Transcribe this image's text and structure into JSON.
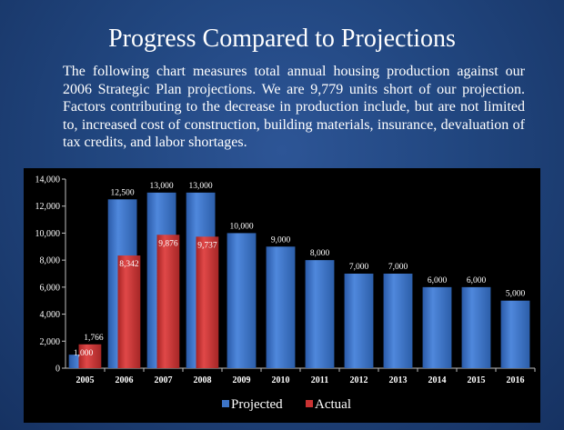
{
  "slide": {
    "title": "Progress Compared to Projections",
    "body": "The following chart measures total annual housing production against our 2006 Strategic Plan projections.  We are 9,779 units short of our projection. Factors contributing to the decrease in production include, but are not limited to, increased cost of construction, building materials, insurance, devaluation of tax credits, and labor shortages."
  },
  "colors": {
    "projected": "#3c74c8",
    "actual": "#c93232",
    "background": "#1f3f73"
  },
  "chart_data": {
    "type": "bar",
    "title": "",
    "xlabel": "",
    "ylabel": "",
    "ylim": [
      0,
      14000
    ],
    "yticks": [
      0,
      2000,
      4000,
      6000,
      8000,
      10000,
      12000,
      14000
    ],
    "ytick_labels": [
      "0",
      "2,000",
      "4,000",
      "6,000",
      "8,000",
      "10,000",
      "12,000",
      "14,000"
    ],
    "categories": [
      "2005",
      "2006",
      "2007",
      "2008",
      "2009",
      "2010",
      "2011",
      "2012",
      "2013",
      "2014",
      "2015",
      "2016"
    ],
    "series": [
      {
        "name": "Projected",
        "color": "#3c74c8",
        "values": [
          1000,
          12500,
          13000,
          13000,
          10000,
          9000,
          8000,
          7000,
          7000,
          6000,
          6000,
          5000
        ],
        "labels": [
          "1,000",
          "12,500",
          "13,000",
          "13,000",
          "10,000",
          "9,000",
          "8,000",
          "7,000",
          "7,000",
          "6,000",
          "6,000",
          "5,000"
        ]
      },
      {
        "name": "Actual",
        "color": "#c93232",
        "values": [
          1766,
          8342,
          9876,
          9737,
          null,
          null,
          null,
          null,
          null,
          null,
          null,
          null
        ],
        "labels": [
          "1,766",
          "8,342",
          "9,876",
          "9,737",
          null,
          null,
          null,
          null,
          null,
          null,
          null,
          null
        ]
      }
    ],
    "legend": {
      "placement": "bottom-center",
      "items": [
        "Projected",
        "Actual"
      ]
    }
  }
}
